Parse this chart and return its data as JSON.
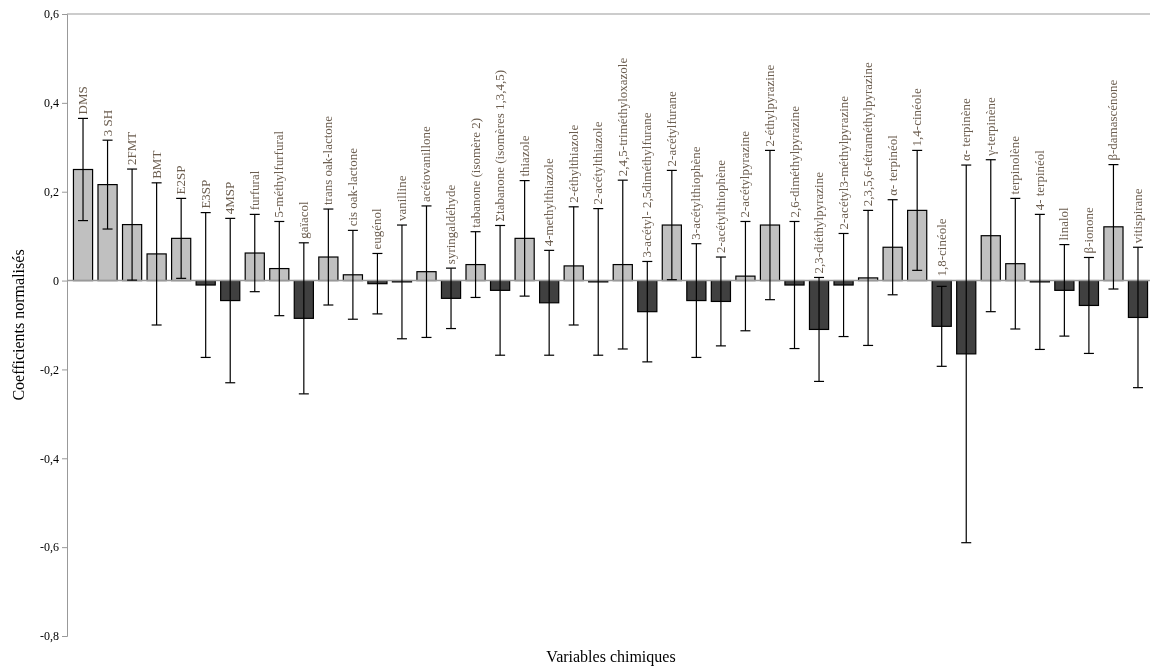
{
  "chart_data": {
    "type": "bar",
    "xlabel": "Variables chimiques",
    "ylabel": "Coefficients normalisés",
    "categories": [
      "DMS",
      "3 SH",
      "2FMT",
      "BMT",
      "E2SP",
      "E3SP",
      "4MSP",
      "furfural",
      "5-méthylfurfural",
      "gaïacol",
      "trans oak-lactone",
      "cis oak-lactone",
      "eugénol",
      "vanilline",
      "acétovanillone",
      "syringaldéhyde",
      "tabanone (isomère 2)",
      "Σtabanone (isomères 1,3,4,5)",
      "thiazole",
      "4-methylthiazole",
      "2-éthylthiazole",
      "2-acétylthiazole",
      "2,4,5-triméthyloxazole",
      "3-acétyl- 2,5diméthylfurane",
      "2-acétylfurane",
      "3-acétylthiophène",
      "2-acétylthiophène",
      "2-acétylpyrazine",
      "2-éthylpyrazine",
      "2,6-diméthylpyrazine",
      "2,3-diéthylpyrazine",
      "2-acétyl3-méthylpyrazine",
      "2,3,5,6-tétraméthylpyrazine",
      "α- terpinéol",
      "1,4-cinéole",
      "1,8-cinéole",
      "α- terpinène",
      "γ-terpinène",
      "terpinolène",
      "4- terpinéol",
      "linalol",
      "β-ionone",
      "β-damascénone",
      "vitispirane"
    ],
    "values": [
      0.25,
      0.216,
      0.126,
      0.06,
      0.095,
      -0.01,
      -0.045,
      0.062,
      0.027,
      -0.085,
      0.053,
      0.013,
      -0.007,
      -0.003,
      0.02,
      -0.04,
      0.036,
      -0.022,
      0.095,
      -0.05,
      0.033,
      -0.003,
      0.036,
      -0.07,
      0.125,
      -0.045,
      -0.047,
      0.01,
      0.125,
      -0.01,
      -0.11,
      -0.01,
      0.006,
      0.075,
      0.158,
      -0.103,
      -0.165,
      0.101,
      0.038,
      -0.003,
      -0.022,
      -0.056,
      0.121,
      -0.083
    ],
    "errors": [
      0.115,
      0.1,
      0.125,
      0.16,
      0.09,
      0.163,
      0.185,
      0.087,
      0.106,
      0.17,
      0.108,
      0.1,
      0.068,
      0.128,
      0.148,
      0.068,
      0.074,
      0.146,
      0.13,
      0.118,
      0.133,
      0.165,
      0.19,
      0.113,
      0.123,
      0.128,
      0.1,
      0.123,
      0.168,
      0.143,
      0.117,
      0.116,
      0.152,
      0.107,
      0.135,
      0.09,
      0.425,
      0.171,
      0.147,
      0.152,
      0.103,
      0.108,
      0.14,
      0.158
    ],
    "colors": [
      "#c0c0c0",
      "#c0c0c0",
      "#c0c0c0",
      "#c0c0c0",
      "#c0c0c0",
      "#404040",
      "#404040",
      "#c0c0c0",
      "#c0c0c0",
      "#404040",
      "#c0c0c0",
      "#c0c0c0",
      "#404040",
      "#404040",
      "#c0c0c0",
      "#404040",
      "#c0c0c0",
      "#404040",
      "#c0c0c0",
      "#404040",
      "#c0c0c0",
      "#404040",
      "#c0c0c0",
      "#404040",
      "#c0c0c0",
      "#404040",
      "#404040",
      "#c0c0c0",
      "#c0c0c0",
      "#404040",
      "#404040",
      "#404040",
      "#c0c0c0",
      "#c0c0c0",
      "#c0c0c0",
      "#404040",
      "#404040",
      "#c0c0c0",
      "#c0c0c0",
      "#404040",
      "#404040",
      "#404040",
      "#c0c0c0",
      "#404040"
    ],
    "ylim": [
      -0.8,
      0.6
    ],
    "yticks": [
      {
        "value": -0.8,
        "label": "-0,8"
      },
      {
        "value": -0.6,
        "label": "-0,6"
      },
      {
        "value": -0.4,
        "label": "-0,4"
      },
      {
        "value": -0.2,
        "label": "-0,2"
      },
      0,
      {
        "value": 0.2,
        "label": "0,2"
      },
      {
        "value": 0.4,
        "label": "0,4"
      },
      {
        "value": 0.6,
        "label": "0,6"
      }
    ],
    "tick_labels": "y"
  }
}
